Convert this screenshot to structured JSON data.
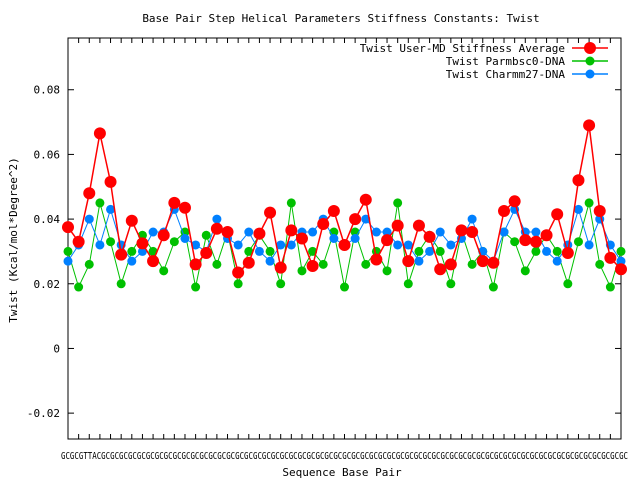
{
  "chart_data": {
    "type": "line",
    "title": "Base Pair Step Helical Parameters Stiffness Constants: Twist",
    "xlabel": "Sequence Base Pair",
    "ylabel": "Twist (Kcal/mol*Degree^2)",
    "ylim": [
      -0.028,
      0.096
    ],
    "yticks": [
      -0.02,
      0,
      0.02,
      0.04,
      0.06,
      0.08
    ],
    "ytick_labels": [
      "-0.02",
      "0",
      "0.02",
      "0.04",
      "0.06",
      "0.08"
    ],
    "x_tick_text": "GCGCGTTACGCGCGCGCGCGCGCGCGCGCGCGCGCGCGCGCGCGCGCGCGCGCGCGCGCGCGCGCGCGCGCGCGCGCGCGCGCGCGCGCGCGCGCGCGCGCGCGCGCGCGCGCGCGCGCGCGCGCGC",
    "grid": false,
    "legend_position": "top-right",
    "series": [
      {
        "name": "Twist User-MD Stiffness Average",
        "color": "#ff0000",
        "values": [
          0.0375,
          0.033,
          0.048,
          0.0665,
          0.0515,
          0.029,
          0.0395,
          0.0325,
          0.027,
          0.035,
          0.045,
          0.0435,
          0.026,
          0.0295,
          0.037,
          0.036,
          0.0235,
          0.0265,
          0.0355,
          0.042,
          0.025,
          0.0365,
          0.034,
          0.0255,
          0.0385,
          0.0425,
          0.032,
          0.04,
          0.046,
          0.0275,
          0.0335,
          0.038,
          0.027,
          0.038,
          0.0345,
          0.0245,
          0.026,
          0.0365,
          0.036,
          0.027,
          0.0265,
          0.0425,
          0.0455,
          0.0335,
          0.033,
          0.035,
          0.0415,
          0.0295,
          0.052,
          0.069,
          0.0425,
          0.028,
          0.0245
        ]
      },
      {
        "name": "Twist Parmbsc0-DNA",
        "color": "#00c000",
        "values": [
          0.03,
          0.019,
          0.026,
          0.045,
          0.033,
          0.02,
          0.03,
          0.035,
          0.03,
          0.024,
          0.033,
          0.036,
          0.019,
          0.035,
          0.026,
          0.036,
          0.02,
          0.03,
          0.035,
          0.03,
          0.02,
          0.045,
          0.024,
          0.03,
          0.026,
          0.036,
          0.019,
          0.036,
          0.026,
          0.03,
          0.024,
          0.045,
          0.02,
          0.03,
          0.035,
          0.03,
          0.02,
          0.036,
          0.026,
          0.03,
          0.019,
          0.036,
          0.033,
          0.024,
          0.03,
          0.035,
          0.03,
          0.02,
          0.033,
          0.045,
          0.026,
          0.019,
          0.03
        ]
      },
      {
        "name": "Twist Charmm27-DNA",
        "color": "#0080ff",
        "values": [
          0.027,
          0.032,
          0.04,
          0.032,
          0.043,
          0.032,
          0.027,
          0.03,
          0.036,
          0.036,
          0.043,
          0.034,
          0.032,
          0.03,
          0.04,
          0.034,
          0.032,
          0.036,
          0.03,
          0.027,
          0.032,
          0.032,
          0.036,
          0.036,
          0.04,
          0.034,
          0.032,
          0.034,
          0.04,
          0.036,
          0.036,
          0.032,
          0.032,
          0.027,
          0.03,
          0.036,
          0.032,
          0.034,
          0.04,
          0.03,
          0.027,
          0.036,
          0.043,
          0.036,
          0.036,
          0.03,
          0.027,
          0.032,
          0.043,
          0.032,
          0.04,
          0.032,
          0.027
        ]
      }
    ]
  }
}
